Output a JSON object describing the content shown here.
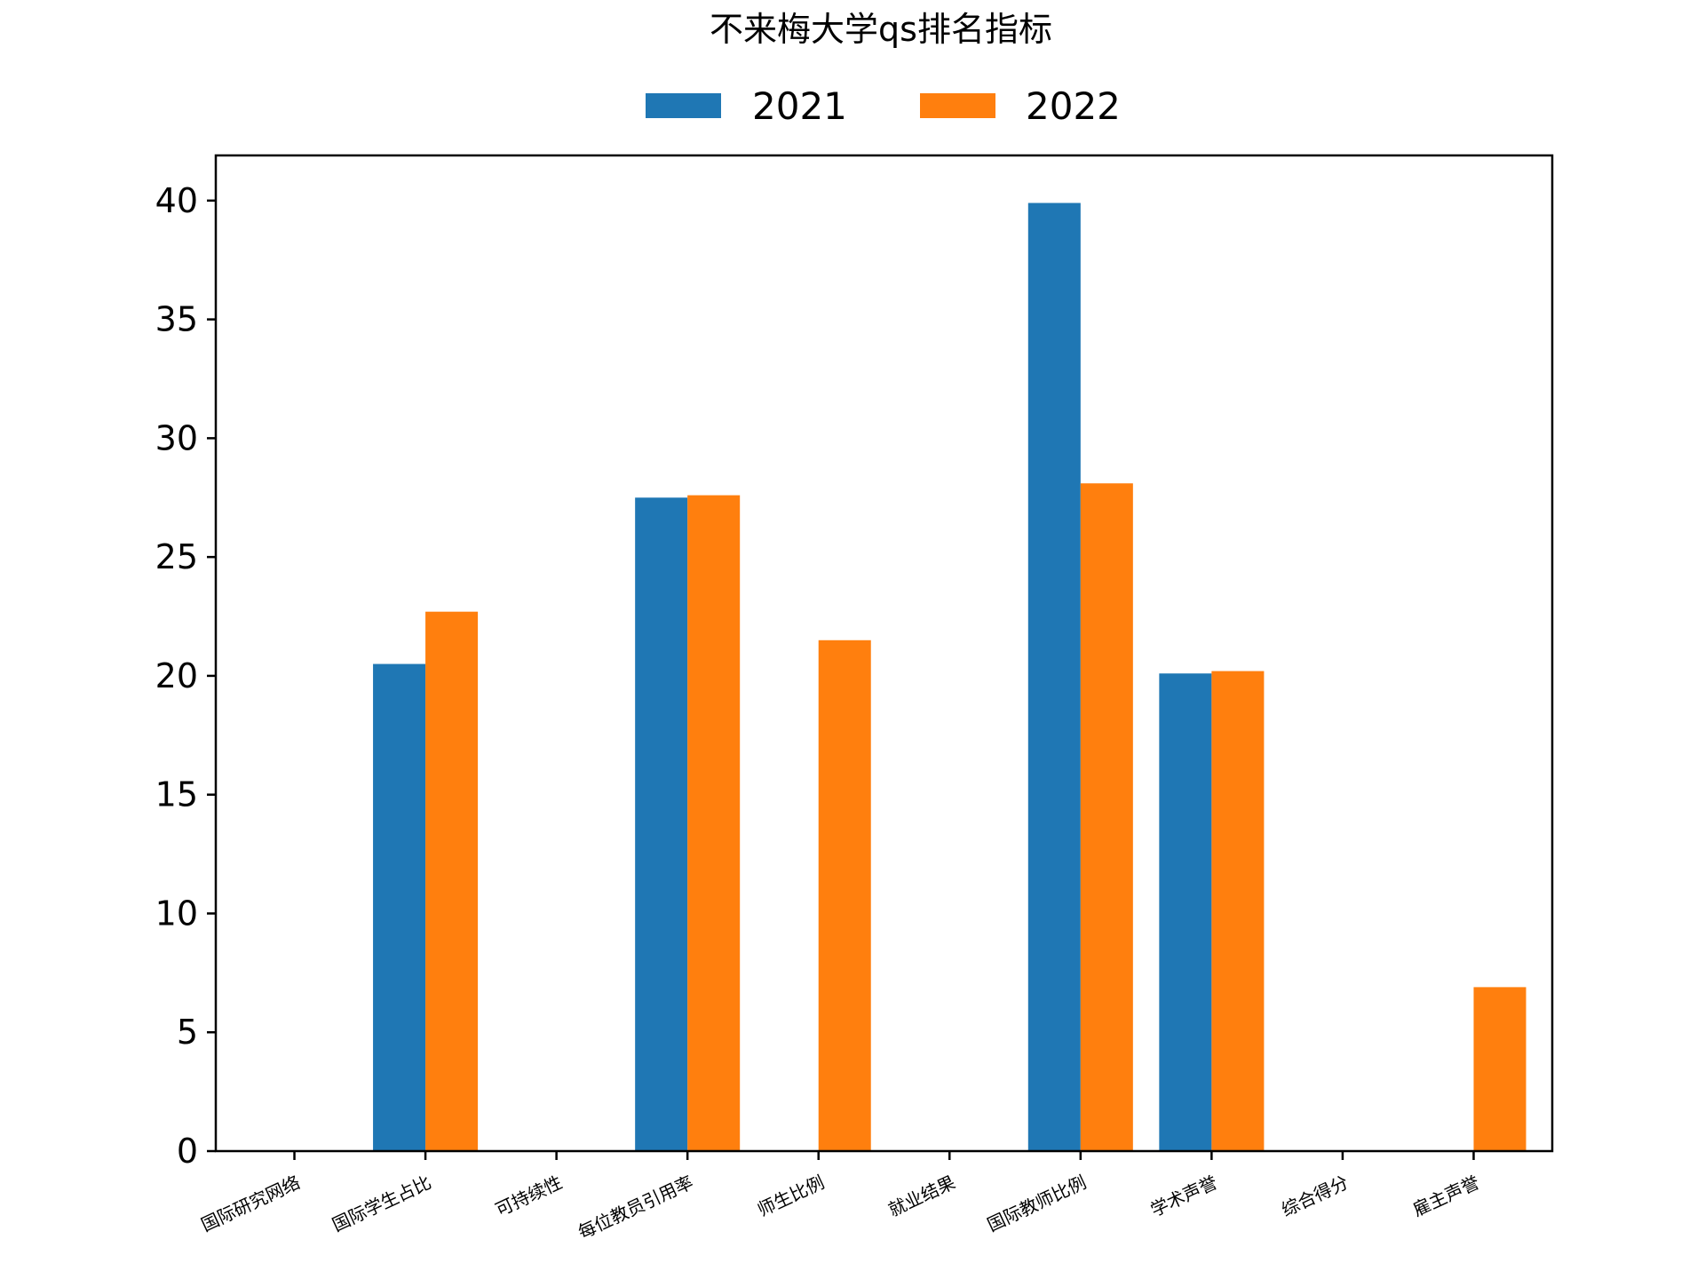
{
  "chart_data": {
    "type": "bar",
    "title": "不来梅大学qs排名指标",
    "xlabel": "",
    "ylabel": "",
    "categories": [
      "国际研究网络",
      "国际学生占比",
      "可持续性",
      "每位教员引用率",
      "师生比例",
      "就业结果",
      "国际教师比例",
      "学术声誉",
      "综合得分",
      "雇主声誉"
    ],
    "series": [
      {
        "name": "2021",
        "color": "#1f77b4",
        "values": [
          0,
          20.5,
          0,
          27.5,
          0,
          0,
          39.9,
          20.1,
          0,
          0
        ]
      },
      {
        "name": "2022",
        "color": "#ff7f0e",
        "values": [
          0,
          22.7,
          0,
          27.6,
          21.5,
          0,
          28.1,
          20.2,
          0,
          6.9
        ]
      }
    ],
    "ylim": [
      0,
      41.9
    ],
    "yticks": [
      "0",
      "5",
      "10",
      "15",
      "20",
      "25",
      "30",
      "35",
      "40"
    ],
    "grid": false,
    "legend_position": "top-center"
  }
}
